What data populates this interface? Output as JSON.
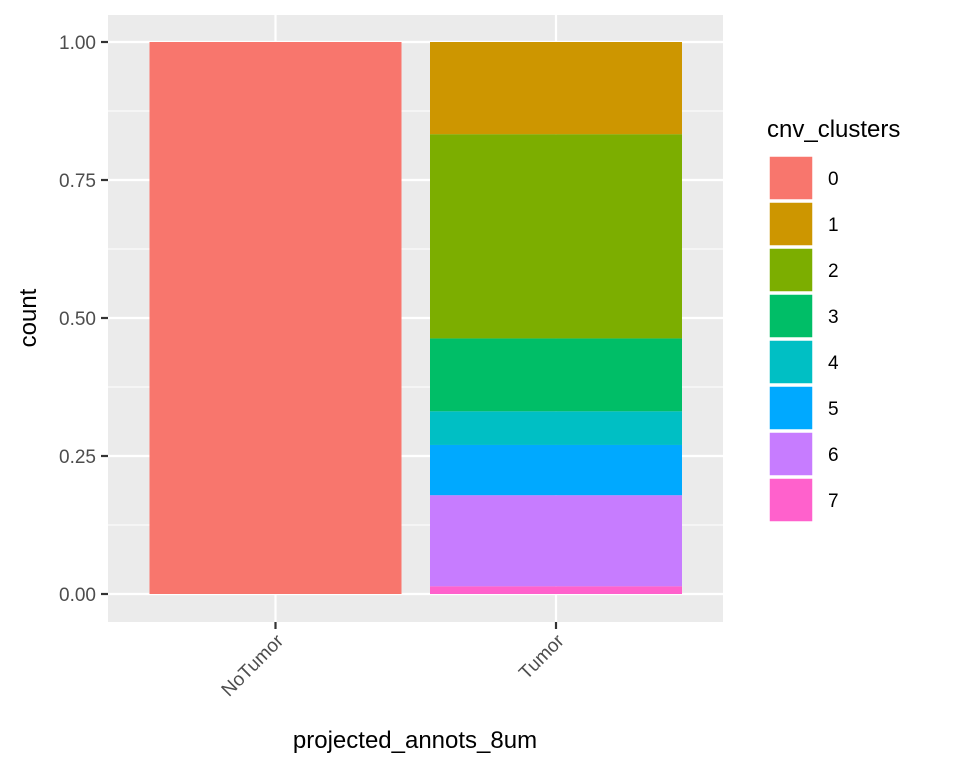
{
  "chart_data": {
    "type": "bar",
    "stacked": true,
    "categories": [
      "NoTumor",
      "Tumor"
    ],
    "series": [
      {
        "name": "0",
        "color": "#F8766D",
        "values": [
          1.0,
          0.0
        ]
      },
      {
        "name": "1",
        "color": "#CD9600",
        "values": [
          0.0,
          0.167
        ]
      },
      {
        "name": "2",
        "color": "#7CAE00",
        "values": [
          0.0,
          0.37
        ]
      },
      {
        "name": "3",
        "color": "#00BE67",
        "values": [
          0.0,
          0.132
        ]
      },
      {
        "name": "4",
        "color": "#00BFC4",
        "values": [
          0.0,
          0.061
        ]
      },
      {
        "name": "5",
        "color": "#00A9FF",
        "values": [
          0.0,
          0.091
        ]
      },
      {
        "name": "6",
        "color": "#C77CFF",
        "values": [
          0.0,
          0.165
        ]
      },
      {
        "name": "7",
        "color": "#FF61CC",
        "values": [
          0.0,
          0.014
        ]
      }
    ],
    "xlabel": "projected_annots_8um",
    "ylabel": "count",
    "ylim": [
      0,
      1
    ],
    "yticks": [
      "0.00",
      "0.25",
      "0.50",
      "0.75",
      "1.00"
    ],
    "legend_title": "cnv_clusters",
    "legend_position": "right",
    "grid": true,
    "panel_background": "#EBEBEB"
  }
}
